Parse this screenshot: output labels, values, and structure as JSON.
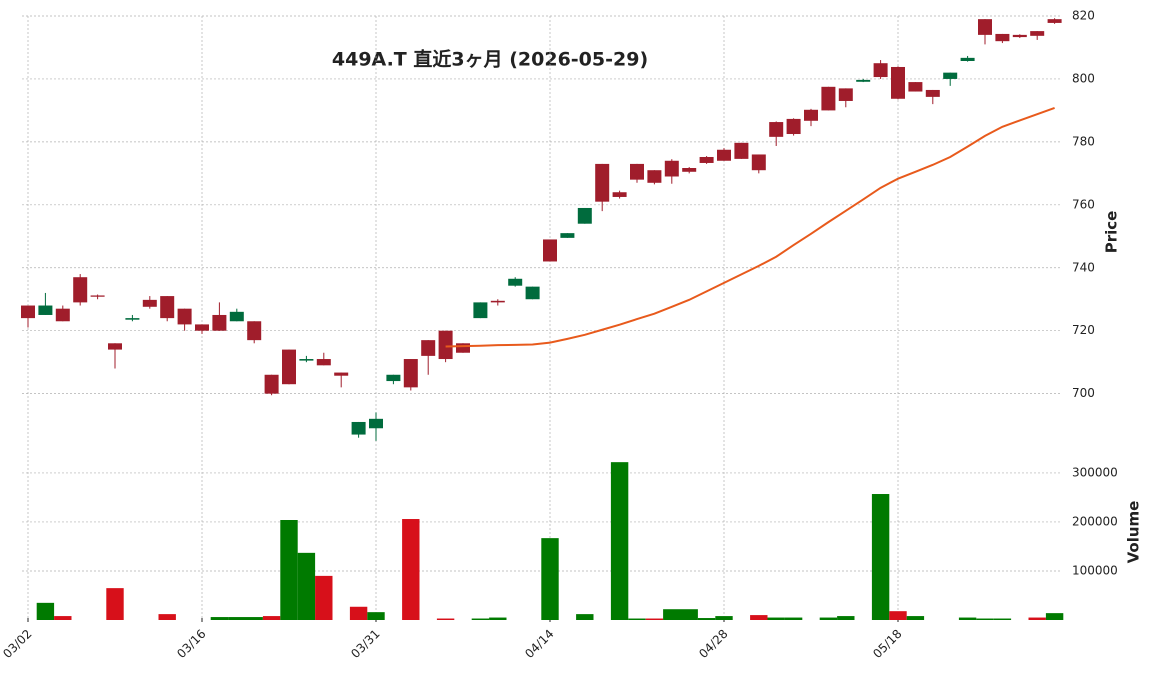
{
  "chart_data": {
    "type": "candlestick",
    "title": "449A.T  直近3ヶ月  (2026-05-29)",
    "categories": [
      "03/02",
      null,
      null,
      null,
      null,
      null,
      null,
      null,
      null,
      null,
      "03/16",
      null,
      null,
      null,
      null,
      null,
      null,
      null,
      null,
      null,
      "03/31",
      null,
      null,
      null,
      null,
      null,
      null,
      null,
      null,
      null,
      "04/14",
      null,
      null,
      null,
      null,
      null,
      null,
      null,
      null,
      null,
      "04/28",
      null,
      null,
      null,
      null,
      null,
      null,
      null,
      null,
      null,
      "05/18",
      null,
      null,
      null,
      null,
      null,
      null,
      null,
      null,
      null
    ],
    "open": [
      724,
      728,
      723,
      729,
      730.8,
      714,
      724,
      727.6,
      724,
      722,
      720,
      720,
      726,
      717,
      700,
      703,
      711,
      709,
      705.7,
      691,
      692,
      706,
      702,
      712,
      711,
      713,
      729,
      729,
      736.5,
      734,
      742,
      751,
      759,
      761,
      762.5,
      768,
      767,
      769,
      770.5,
      773.3,
      774,
      774.6,
      771,
      781.6,
      782.5,
      786.7,
      790,
      793,
      799.7,
      800.6,
      793.7,
      796,
      794.3,
      802,
      806.7,
      814,
      812,
      813.3,
      813.7,
      817.8
    ],
    "high": [
      728,
      732,
      728,
      738,
      731.5,
      716,
      725,
      731,
      731,
      727,
      722,
      729,
      727,
      723,
      706,
      714,
      712,
      713,
      706.7,
      691,
      694,
      706,
      711,
      717,
      720,
      716,
      729,
      730,
      737,
      734,
      749,
      751,
      759,
      773,
      764.5,
      773,
      771,
      774.5,
      772,
      775.5,
      778,
      779.7,
      776,
      786.5,
      787.5,
      790.5,
      797.5,
      797,
      800,
      806,
      804,
      799,
      796.5,
      802,
      807.3,
      819,
      814.3,
      814.2,
      815.2,
      819.3
    ],
    "low": [
      721,
      725,
      723,
      728,
      730,
      708,
      723,
      727,
      723,
      720,
      719,
      720,
      723,
      716,
      699.5,
      703,
      710,
      709,
      702,
      686,
      685,
      703,
      701,
      706,
      710,
      713,
      724,
      728,
      734,
      730,
      742,
      749.5,
      754,
      758,
      762,
      767,
      766.5,
      766.7,
      770,
      773,
      774,
      774.6,
      770,
      778.7,
      782,
      785,
      790,
      791,
      799,
      800,
      793.5,
      796,
      792,
      797.8,
      805.5,
      811,
      811.4,
      813,
      812.4,
      817.5
    ],
    "close": [
      728,
      725,
      727,
      737,
      731.2,
      716,
      723.5,
      729.8,
      731,
      727,
      722,
      725,
      723,
      723,
      706,
      714,
      710.5,
      711,
      706.7,
      687,
      689,
      704,
      711,
      717,
      720,
      716,
      724,
      729.5,
      734.3,
      730,
      749,
      749.5,
      754,
      773,
      764,
      773,
      771,
      774,
      771.7,
      775.2,
      777.5,
      779.7,
      776,
      786.3,
      787.3,
      790.2,
      797.5,
      797,
      799.1,
      805,
      803.8,
      799,
      796.5,
      800,
      805.7,
      819,
      814.3,
      814,
      815.2,
      819
    ],
    "up_color": "#a01d2b",
    "down_color": "#006b3d",
    "ma": {
      "color": "#e85a1c",
      "values": [
        null,
        null,
        null,
        null,
        null,
        null,
        null,
        null,
        null,
        null,
        null,
        null,
        null,
        null,
        null,
        null,
        null,
        null,
        null,
        null,
        null,
        null,
        null,
        null,
        715.0,
        715.1,
        715.2,
        715.4,
        715.5,
        715.6,
        716.2,
        717.4,
        718.7,
        720.3,
        721.9,
        723.7,
        725.4,
        727.6,
        729.8,
        732.5,
        735.2,
        737.9,
        740.6,
        743.5,
        747.2,
        750.8,
        754.5,
        758.1,
        761.7,
        765.4,
        768.3,
        770.5,
        772.7,
        775.2,
        778.5,
        781.9,
        784.8,
        786.8,
        788.8,
        790.8
      ]
    },
    "ylabel": "Price",
    "ylim": [
      684,
      820
    ],
    "yticks": [
      700,
      720,
      740,
      760,
      780,
      800,
      820
    ],
    "grid": true,
    "volume": {
      "ylabel": "Volume",
      "values": [
        0,
        35000,
        8000,
        0,
        0,
        65000,
        0,
        0,
        12000,
        0,
        0,
        6000,
        6000,
        6000,
        8000,
        204000,
        137000,
        90000,
        0,
        27000,
        16000,
        0,
        206000,
        0,
        3000,
        0,
        3000,
        5000,
        0,
        0,
        167000,
        0,
        12000,
        0,
        322000,
        3000,
        3000,
        22000,
        22000,
        4000,
        8000,
        0,
        10000,
        5000,
        5000,
        0,
        5000,
        8000,
        0,
        257000,
        18000,
        8000,
        0,
        0,
        5000,
        3000,
        3000,
        0,
        5000,
        14000
      ],
      "colors": [
        "#007a00",
        "#007a00",
        "#d7101a",
        "#007a00",
        "#007a00",
        "#d7101a",
        "#007a00",
        "#007a00",
        "#d7101a",
        "#007a00",
        "#007a00",
        "#007a00",
        "#007a00",
        "#007a00",
        "#d7101a",
        "#007a00",
        "#007a00",
        "#d7101a",
        "#007a00",
        "#d7101a",
        "#007a00",
        "#007a00",
        "#d7101a",
        "#007a00",
        "#d7101a",
        "#007a00",
        "#007a00",
        "#007a00",
        "#007a00",
        "#007a00",
        "#007a00",
        "#007a00",
        "#007a00",
        "#007a00",
        "#007a00",
        "#007a00",
        "#d7101a",
        "#007a00",
        "#007a00",
        "#007a00",
        "#007a00",
        "#007a00",
        "#d7101a",
        "#007a00",
        "#007a00",
        "#007a00",
        "#007a00",
        "#007a00",
        "#007a00",
        "#007a00",
        "#d7101a",
        "#007a00",
        "#007a00",
        "#007a00",
        "#007a00",
        "#007a00",
        "#007a00",
        "#007a00",
        "#d7101a",
        "#007a00"
      ],
      "ylim": [
        0,
        357000
      ],
      "yticks": [
        100000,
        200000,
        300000
      ]
    }
  }
}
